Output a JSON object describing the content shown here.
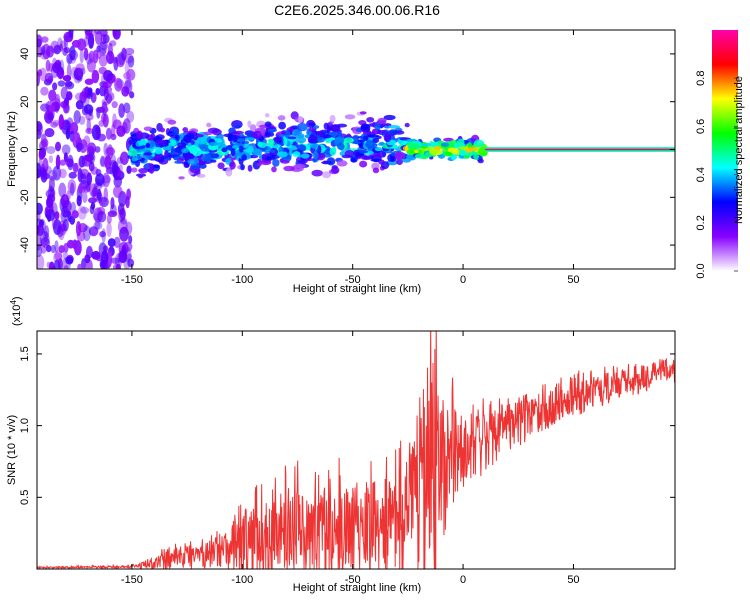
{
  "title": "C2E6.2025.346.00.06.R16",
  "chart_data": [
    {
      "type": "heatmap",
      "name": "spectrogram",
      "xlabel": "Height of straight line (km)",
      "ylabel": "Frequency (Hz)",
      "xlim": [
        -193,
        96
      ],
      "ylim": [
        -50,
        50
      ],
      "x_ticks": [
        -150,
        -100,
        -50,
        0,
        50
      ],
      "x_tick_labels": [
        "-150",
        "-100",
        "-50",
        "0",
        "50"
      ],
      "y_ticks": [
        -40,
        -20,
        0,
        20,
        40
      ],
      "y_tick_labels": [
        "-40",
        "-20",
        "0",
        "20",
        "40"
      ],
      "colorbar": {
        "label": "Normalized spectral amplitude",
        "range": [
          0,
          1
        ],
        "ticks": [
          0.0,
          0.2,
          0.4,
          0.6,
          0.8
        ],
        "tick_labels": [
          "0.0",
          "0.2",
          "0.4",
          "0.6",
          "0.8"
        ],
        "colors": [
          "#ffffff",
          "#8800ff",
          "#0000ff",
          "#00ffff",
          "#00ff00",
          "#ffff00",
          "#ff0000",
          "#ff00aa"
        ]
      },
      "regions": [
        {
          "x_range": [
            -193,
            -150
          ],
          "freq_range": [
            -50,
            50
          ],
          "amplitude": 0.15,
          "description": "scattered noise"
        },
        {
          "x_range": [
            -150,
            -25
          ],
          "freq_range": [
            -10,
            10
          ],
          "amplitude": 0.4,
          "description": "broad band around 0 Hz"
        },
        {
          "x_range": [
            -25,
            10
          ],
          "freq_range": [
            -4,
            4
          ],
          "amplitude": 0.7,
          "description": "narrowing band"
        },
        {
          "x_range": [
            10,
            96
          ],
          "freq_range": [
            -1,
            1
          ],
          "amplitude": 0.95,
          "description": "stable tone at 0 Hz"
        }
      ]
    },
    {
      "type": "line",
      "name": "snr",
      "xlabel": "Height of straight line (km)",
      "ylabel": "SNR (10 * v/v)",
      "multiplier_label": "(x10",
      "multiplier_exp": "4",
      "multiplier_close": ")",
      "xlim": [
        -193,
        96
      ],
      "ylim": [
        0,
        16600
      ],
      "x_ticks": [
        -150,
        -100,
        -50,
        0,
        50
      ],
      "x_tick_labels": [
        "-150",
        "-100",
        "-50",
        "0",
        "50"
      ],
      "y_ticks": [
        5000,
        10000,
        15000
      ],
      "y_tick_labels": [
        "0.5",
        "1.0",
        "1.5"
      ],
      "color": "#ee3333",
      "envelope": {
        "x": [
          -193,
          -150,
          -140,
          -125,
          -110,
          -100,
          -90,
          -80,
          -70,
          -60,
          -50,
          -40,
          -30,
          -25,
          -20,
          -15,
          -12,
          -10,
          -5,
          0,
          5,
          10,
          15,
          20,
          30,
          40,
          50,
          60,
          70,
          80,
          90,
          96
        ],
        "y": [
          100,
          150,
          400,
          900,
          1300,
          1700,
          1900,
          2100,
          2300,
          2500,
          2700,
          2900,
          3100,
          3500,
          4200,
          5500,
          6500,
          7200,
          7800,
          8200,
          8500,
          8800,
          9300,
          9800,
          10500,
          11200,
          11800,
          12300,
          12800,
          13200,
          13700,
          13900
        ]
      },
      "amplitude": {
        "x": [
          -193,
          -150,
          -140,
          -110,
          -100,
          -80,
          -60,
          -40,
          -30,
          -25,
          -20,
          -15,
          -12,
          -10,
          -5,
          0,
          10,
          20,
          40,
          70,
          96
        ],
        "y": [
          50,
          80,
          500,
          1300,
          2400,
          3400,
          3200,
          3400,
          3600,
          4500,
          7000,
          9500,
          9000,
          6000,
          3500,
          2600,
          2200,
          1700,
          1300,
          1100,
          900
        ]
      }
    }
  ]
}
